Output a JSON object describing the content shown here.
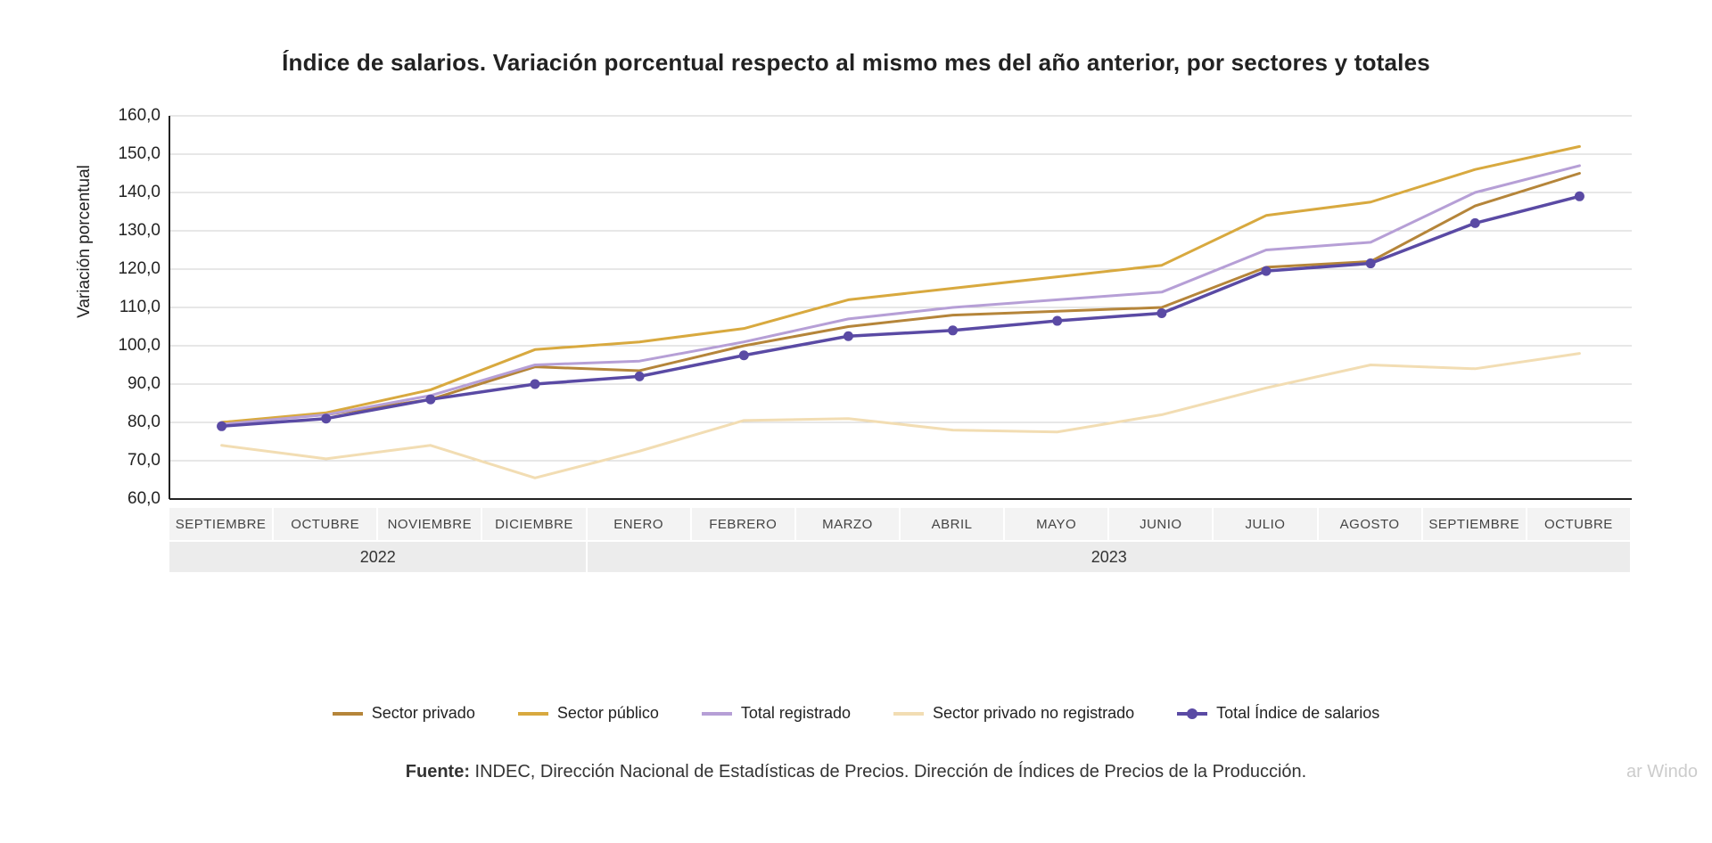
{
  "chart": {
    "type": "line",
    "title": "Índice de salarios. Variación porcentual respecto al mismo mes del año anterior, por sectores y totales",
    "title_fontsize": 26,
    "title_fontweight": 700,
    "y_axis_title": "Variación porcentual",
    "label_fontsize": 19,
    "background_color": "#ffffff",
    "grid_color": "#cfcfcf",
    "grid_linewidth": 1,
    "axis_linewidth": 2,
    "axis_color": "#222222",
    "ylim": [
      60,
      160
    ],
    "yticks": [
      60.0,
      70.0,
      80.0,
      90.0,
      100.0,
      110.0,
      120.0,
      130.0,
      140.0,
      150.0,
      160.0
    ],
    "ytick_labels": [
      "60,0",
      "70,0",
      "80,0",
      "90,0",
      "100,0",
      "110,0",
      "120,0",
      "130,0",
      "140,0",
      "150,0",
      "160,0"
    ],
    "categories": [
      "SEPTIEMBRE",
      "OCTUBRE",
      "NOVIEMBRE",
      "DICIEMBRE",
      "ENERO",
      "FEBRERO",
      "MARZO",
      "ABRIL",
      "MAYO",
      "JUNIO",
      "JULIO",
      "AGOSTO",
      "SEPTIEMBRE",
      "OCTUBRE"
    ],
    "year_groups": [
      {
        "label": "2022",
        "span": 4
      },
      {
        "label": "2023",
        "span": 10
      }
    ],
    "x_band_bg": "#f3f3f3",
    "x_year_bg": "#ececec",
    "series": [
      {
        "name": "Sector privado",
        "color": "#b5853a",
        "linewidth": 3,
        "marker": false,
        "values": [
          80.0,
          82.0,
          86.0,
          94.5,
          93.5,
          100.0,
          105.0,
          108.0,
          109.0,
          110.0,
          120.5,
          122.0,
          136.5,
          145.0
        ]
      },
      {
        "name": "Sector público",
        "color": "#d8a93f",
        "linewidth": 3,
        "marker": false,
        "values": [
          80.0,
          82.5,
          88.5,
          99.0,
          101.0,
          104.5,
          112.0,
          115.0,
          118.0,
          121.0,
          134.0,
          137.5,
          146.0,
          152.0
        ]
      },
      {
        "name": "Total registrado",
        "color": "#b69fd6",
        "linewidth": 3,
        "marker": false,
        "values": [
          79.5,
          82.0,
          87.0,
          95.0,
          96.0,
          101.0,
          107.0,
          110.0,
          112.0,
          114.0,
          125.0,
          127.0,
          140.0,
          147.0
        ]
      },
      {
        "name": "Sector privado no registrado",
        "color": "#f2ddb3",
        "linewidth": 3,
        "marker": false,
        "values": [
          74.0,
          70.5,
          74.0,
          65.5,
          72.5,
          80.5,
          81.0,
          78.0,
          77.5,
          82.0,
          89.0,
          95.0,
          94.0,
          98.0
        ]
      },
      {
        "name": "Total Índice de salarios",
        "color": "#5a4aa4",
        "linewidth": 3.5,
        "marker": true,
        "marker_size": 5.5,
        "values": [
          79.0,
          81.0,
          86.0,
          90.0,
          92.0,
          97.5,
          102.5,
          104.0,
          106.5,
          108.5,
          119.5,
          121.5,
          132.0,
          139.0
        ]
      }
    ]
  },
  "legend": {
    "items": [
      {
        "label": "Sector privado",
        "color": "#b5853a",
        "marker": false
      },
      {
        "label": "Sector público",
        "color": "#d8a93f",
        "marker": false
      },
      {
        "label": "Total registrado",
        "color": "#b69fd6",
        "marker": false
      },
      {
        "label": "Sector privado no registrado",
        "color": "#f2ddb3",
        "marker": false
      },
      {
        "label": "Total Índice de salarios",
        "color": "#5a4aa4",
        "marker": true
      }
    ],
    "fontsize": 18
  },
  "source": {
    "prefix": "Fuente:",
    "text": " INDEC, Dirección Nacional de Estadísticas de Precios. Dirección de Índices de Precios de la Producción.",
    "fontsize": 20
  },
  "watermark": "ar Windo"
}
